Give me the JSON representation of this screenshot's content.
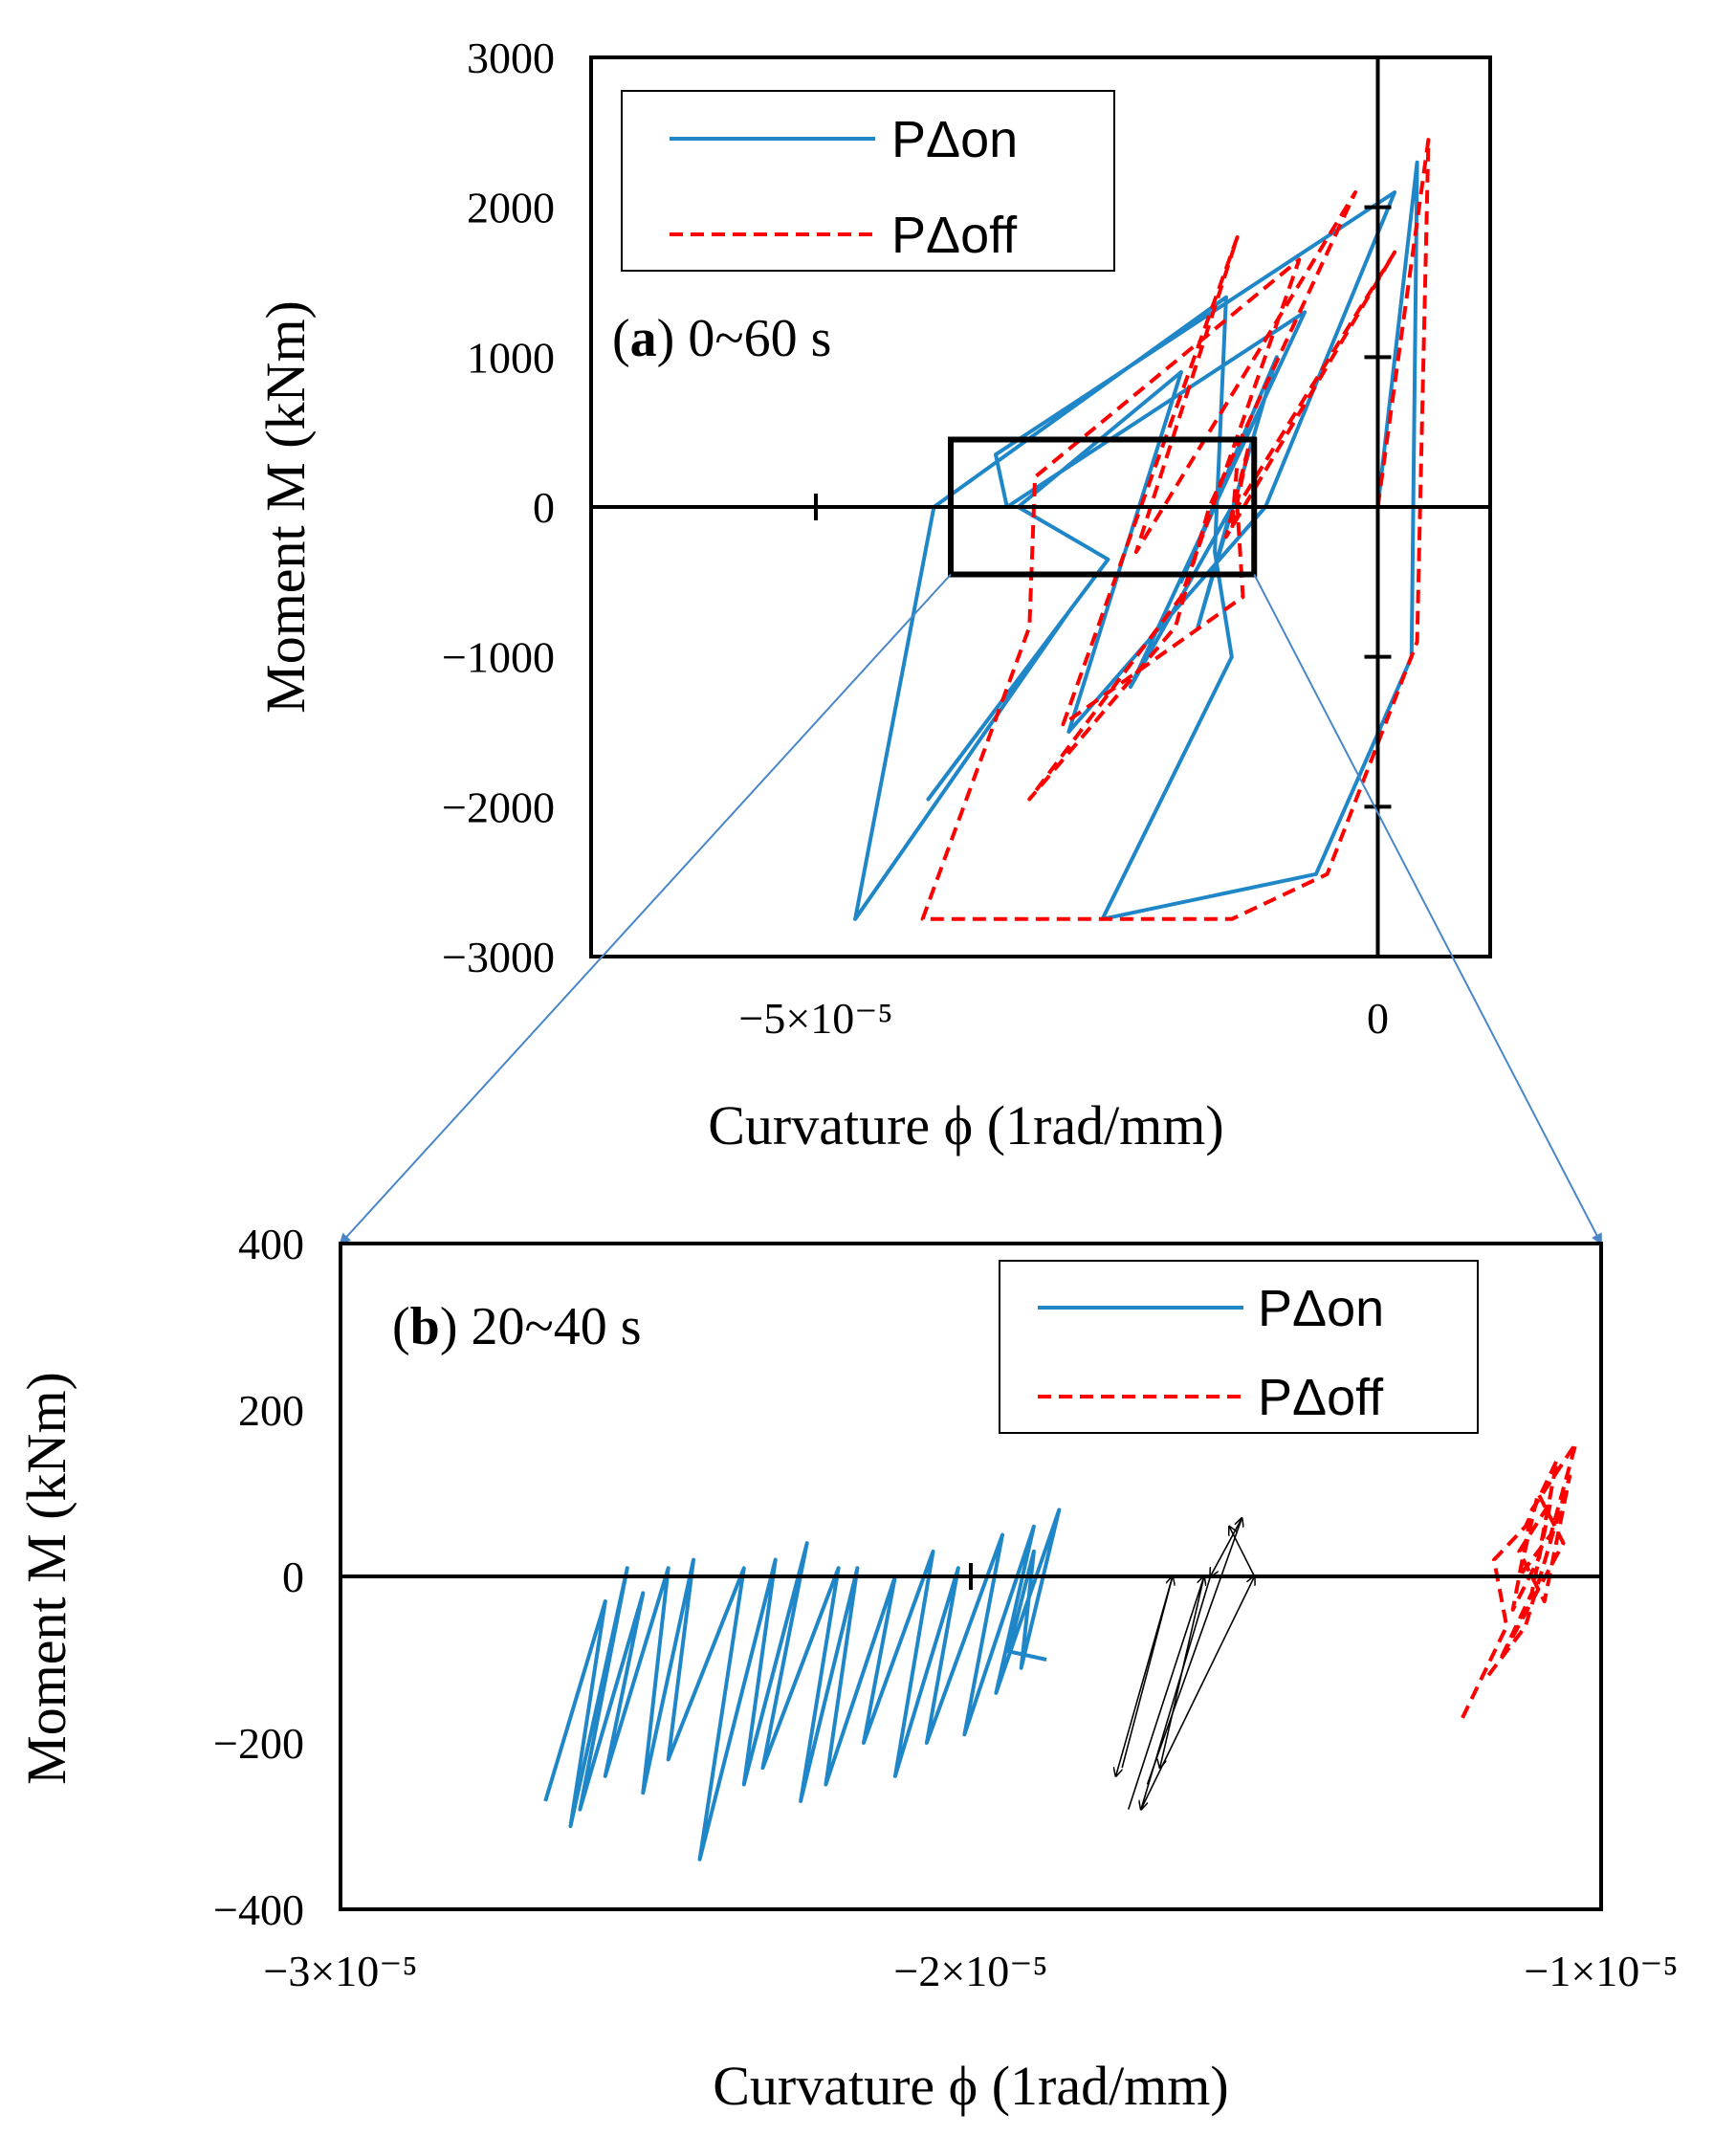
{
  "colors": {
    "on": "#1f86c8",
    "off": "#ff0000",
    "axis": "#000000",
    "zoom_arrow": "#4a86c8"
  },
  "chart_data": [
    {
      "type": "line",
      "panel_label": "a",
      "title": "0~60 s",
      "xlabel": "Curvature ϕ (1rad/mm)",
      "ylabel": "Moment M (kNm)",
      "xlim": [
        -7e-05,
        1e-05
      ],
      "ylim": [
        -3000,
        3000
      ],
      "xticks": [
        {
          "value": -5e-05,
          "label": "−5×10⁻⁵"
        },
        {
          "value": 0,
          "label": "0"
        }
      ],
      "yticks": [
        {
          "value": 3000,
          "label": "3000"
        },
        {
          "value": 2000,
          "label": "2000"
        },
        {
          "value": 1000,
          "label": "1000"
        },
        {
          "value": 0,
          "label": "0"
        },
        {
          "value": -1000,
          "label": "−1000"
        },
        {
          "value": -2000,
          "label": "−2000"
        },
        {
          "value": -3000,
          "label": "−3000"
        }
      ],
      "legend": {
        "position": "top-left",
        "entries": [
          "PΔon",
          "PΔoff"
        ]
      },
      "zoom_box": {
        "x": [
          -3.8e-05,
          -1.1e-05
        ],
        "y": [
          -450,
          450
        ]
      },
      "series": [
        {
          "name": "PΔon",
          "style": "solid",
          "points": [
            [
              0,
              0
            ],
            [
              3.5e-06,
              2300
            ],
            [
              3e-06,
              -1000
            ],
            [
              -5.5e-06,
              -2450
            ],
            [
              -2.45e-05,
              -2750
            ],
            [
              -1.3e-05,
              -1000
            ],
            [
              -1.45e-05,
              -300
            ],
            [
              -1.35e-05,
              1400
            ],
            [
              -3.95e-05,
              0
            ],
            [
              -4.65e-05,
              -2750
            ],
            [
              -2.75e-05,
              -700
            ],
            [
              -4e-05,
              -1950
            ],
            [
              -2.4e-05,
              -350
            ],
            [
              -3.2e-05,
              0
            ],
            [
              -1.75e-05,
              900
            ],
            [
              -2.75e-05,
              -1500
            ],
            [
              -1e-05,
              0
            ],
            [
              1.5e-06,
              2100
            ],
            [
              -3.4e-05,
              350
            ],
            [
              -3.3e-05,
              0
            ],
            [
              -6.5e-06,
              1300
            ],
            [
              -2.2e-05,
              -1200
            ],
            [
              -1.3e-05,
              0
            ],
            [
              -1.6e-05,
              -800
            ],
            [
              -9e-06,
              1000
            ],
            [
              -1.75e-05,
              -500
            ],
            [
              -1.45e-05,
              0
            ]
          ]
        },
        {
          "name": "PΔoff",
          "style": "dashed",
          "points": [
            [
              0,
              0
            ],
            [
              4.5e-06,
              2450
            ],
            [
              3.5e-06,
              -900
            ],
            [
              -4.5e-06,
              -2450
            ],
            [
              -1.3e-05,
              -2750
            ],
            [
              -4.05e-05,
              -2750
            ],
            [
              -3.1e-05,
              -800
            ],
            [
              -3.05e-05,
              200
            ],
            [
              -7e-06,
              1650
            ],
            [
              -1.75e-05,
              -600
            ],
            [
              -3.1e-05,
              -1950
            ],
            [
              -1.8e-05,
              -800
            ],
            [
              -1.5e-05,
              0
            ],
            [
              -2e-06,
              2100
            ],
            [
              -2.15e-05,
              -300
            ],
            [
              -1.25e-05,
              1800
            ],
            [
              -2.8e-05,
              -1450
            ],
            [
              -1.2e-05,
              -600
            ],
            [
              -1.25e-05,
              0
            ],
            [
              1.5e-06,
              1700
            ],
            [
              -1.35e-05,
              -200
            ],
            [
              -1.15e-05,
              400
            ],
            [
              -1.3e-05,
              -150
            ],
            [
              -1.25e-05,
              300
            ]
          ]
        }
      ]
    },
    {
      "type": "line",
      "panel_label": "b",
      "title": "20~40 s",
      "xlabel": "Curvature ϕ (1rad/mm)",
      "ylabel": "Moment M (kNm)",
      "xlim": [
        -3e-05,
        -1e-05
      ],
      "ylim": [
        -400,
        400
      ],
      "xticks": [
        {
          "value": -3e-05,
          "label": "−3×10⁻⁵"
        },
        {
          "value": -2e-05,
          "label": "−2×10⁻⁵"
        },
        {
          "value": -1e-05,
          "label": "−1×10⁻⁵"
        }
      ],
      "yticks": [
        {
          "value": 400,
          "label": "400"
        },
        {
          "value": 200,
          "label": "200"
        },
        {
          "value": 0,
          "label": "0"
        },
        {
          "value": -200,
          "label": "−200"
        },
        {
          "value": -400,
          "label": "−400"
        }
      ],
      "legend": {
        "position": "top-right",
        "entries": [
          "PΔon",
          "PΔoff"
        ]
      },
      "series": [
        {
          "name": "PΔon",
          "style": "solid",
          "points": [
            [
              -2.675e-05,
              -270
            ],
            [
              -2.58e-05,
              -30
            ],
            [
              -2.635e-05,
              -300
            ],
            [
              -2.545e-05,
              10
            ],
            [
              -2.62e-05,
              -280
            ],
            [
              -2.52e-05,
              -20
            ],
            [
              -2.58e-05,
              -240
            ],
            [
              -2.48e-05,
              10
            ],
            [
              -2.52e-05,
              -260
            ],
            [
              -2.44e-05,
              20
            ],
            [
              -2.48e-05,
              -220
            ],
            [
              -2.36e-05,
              10
            ],
            [
              -2.43e-05,
              -340
            ],
            [
              -2.31e-05,
              20
            ],
            [
              -2.36e-05,
              -250
            ],
            [
              -2.26e-05,
              40
            ],
            [
              -2.33e-05,
              -230
            ],
            [
              -2.21e-05,
              10
            ],
            [
              -2.27e-05,
              -270
            ],
            [
              -2.18e-05,
              10
            ],
            [
              -2.23e-05,
              -250
            ],
            [
              -2.12e-05,
              0
            ],
            [
              -2.17e-05,
              -200
            ],
            [
              -2.06e-05,
              30
            ],
            [
              -2.12e-05,
              -240
            ],
            [
              -2.02e-05,
              10
            ],
            [
              -2.07e-05,
              -200
            ],
            [
              -1.95e-05,
              50
            ],
            [
              -2.01e-05,
              -190
            ],
            [
              -1.9e-05,
              60
            ],
            [
              -1.96e-05,
              -140
            ],
            [
              -1.86e-05,
              80
            ],
            [
              -1.92e-05,
              -110
            ],
            [
              -1.9e-05,
              30
            ],
            [
              -1.94e-05,
              -90
            ],
            [
              -1.88e-05,
              -100
            ]
          ]
        },
        {
          "name": "PΔoff",
          "style": "dashed",
          "points": [
            [
              -1.22e-05,
              -170
            ],
            [
              -1.15e-05,
              -60
            ],
            [
              -1.17e-05,
              20
            ],
            [
              -1.12e-05,
              60
            ],
            [
              -1.07e-05,
              140
            ],
            [
              -1.1e-05,
              20
            ],
            [
              -1.14e-05,
              -40
            ],
            [
              -1.11e-05,
              80
            ],
            [
              -1.04e-05,
              160
            ],
            [
              -1.08e-05,
              50
            ],
            [
              -1.13e-05,
              0
            ],
            [
              -1.1e-05,
              100
            ],
            [
              -1.06e-05,
              40
            ],
            [
              -1.16e-05,
              -100
            ],
            [
              -1.11e-05,
              -20
            ],
            [
              -1.08e-05,
              90
            ],
            [
              -1.13e-05,
              30
            ],
            [
              -1.09e-05,
              -30
            ],
            [
              -1.05e-05,
              120
            ],
            [
              -1.12e-05,
              -60
            ],
            [
              -1.18e-05,
              -120
            ]
          ]
        }
      ],
      "arrows": [
        {
          "from": [
            -1.76e-05,
            -230
          ],
          "to": [
            -1.68e-05,
            0
          ]
        },
        {
          "from": [
            -1.68e-05,
            0
          ],
          "to": [
            -1.77e-05,
            -240
          ]
        },
        {
          "from": [
            -1.75e-05,
            -280
          ],
          "to": [
            -1.63e-05,
            0
          ]
        },
        {
          "from": [
            -1.63e-05,
            0
          ],
          "to": [
            -1.7e-05,
            -230
          ]
        },
        {
          "from": [
            -1.72e-05,
            -250
          ],
          "to": [
            -1.57e-05,
            70
          ]
        },
        {
          "from": [
            -1.57e-05,
            70
          ],
          "to": [
            -1.62e-05,
            0
          ]
        },
        {
          "from": [
            -1.62e-05,
            0
          ],
          "to": [
            -1.73e-05,
            -280
          ]
        },
        {
          "from": [
            -1.73e-05,
            -280
          ],
          "to": [
            -1.55e-05,
            0
          ]
        },
        {
          "from": [
            -1.55e-05,
            0
          ],
          "to": [
            -1.59e-05,
            60
          ]
        }
      ]
    }
  ]
}
